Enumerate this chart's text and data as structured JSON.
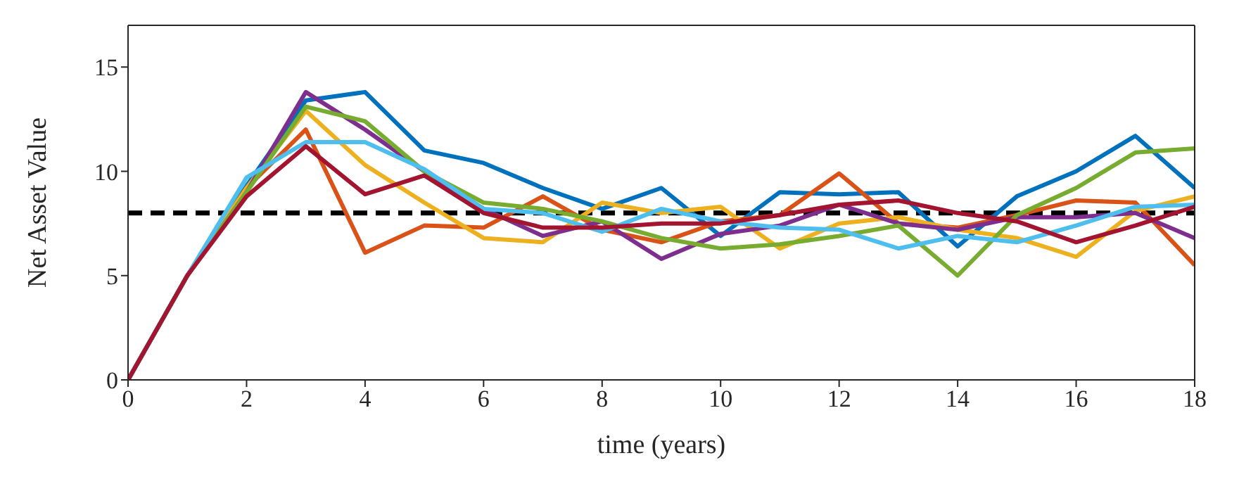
{
  "chart_data": {
    "type": "line",
    "xlabel": "time (years)",
    "ylabel": "Net Asset Value",
    "x": [
      0,
      1,
      2,
      3,
      4,
      5,
      6,
      7,
      8,
      9,
      10,
      11,
      12,
      13,
      14,
      15,
      16,
      17,
      18
    ],
    "xlim": [
      0,
      18
    ],
    "xticks": [
      0,
      2,
      4,
      6,
      8,
      10,
      12,
      14,
      16,
      18
    ],
    "ylim": [
      0,
      17
    ],
    "yticks": [
      0,
      5,
      10,
      15
    ],
    "legend": false,
    "marker": "none",
    "line_style": "solid",
    "series": [
      {
        "color": "#0072bd",
        "values": [
          0,
          5,
          9.3,
          13.4,
          13.8,
          11.0,
          10.4,
          9.2,
          8.2,
          9.2,
          6.9,
          9.0,
          8.9,
          9.0,
          6.4,
          8.8,
          10.0,
          11.7,
          9.2
        ]
      },
      {
        "color": "#d95319",
        "values": [
          0,
          5,
          9.2,
          12.0,
          6.1,
          7.4,
          7.3,
          8.8,
          7.2,
          6.6,
          7.6,
          7.9,
          9.9,
          7.5,
          7.3,
          7.9,
          8.6,
          8.5,
          5.5
        ]
      },
      {
        "color": "#edb120",
        "values": [
          0,
          5,
          9.2,
          12.9,
          10.3,
          8.5,
          6.8,
          6.6,
          8.5,
          8.0,
          8.3,
          6.3,
          7.5,
          7.8,
          7.2,
          6.8,
          5.9,
          8.1,
          8.8
        ]
      },
      {
        "color": "#7e2f8e",
        "values": [
          0,
          5,
          9.0,
          13.8,
          12.0,
          10.0,
          8.2,
          6.9,
          7.6,
          5.8,
          7.0,
          7.4,
          8.4,
          7.5,
          7.2,
          7.8,
          7.8,
          8.0,
          6.8
        ]
      },
      {
        "color": "#77ac30",
        "values": [
          0,
          5,
          9.0,
          13.1,
          12.4,
          10.0,
          8.5,
          8.2,
          7.6,
          6.8,
          6.3,
          6.5,
          6.9,
          7.4,
          5.0,
          7.9,
          9.2,
          10.9,
          11.1
        ]
      },
      {
        "color": "#4dbeee",
        "values": [
          0,
          5,
          9.7,
          11.4,
          11.4,
          10.1,
          8.2,
          8.0,
          7.1,
          8.2,
          7.6,
          7.3,
          7.2,
          6.3,
          6.9,
          6.6,
          7.4,
          8.3,
          8.4
        ]
      },
      {
        "color": "#a2142f",
        "values": [
          0,
          5,
          8.8,
          11.2,
          8.9,
          9.8,
          8.0,
          7.3,
          7.3,
          7.5,
          7.5,
          7.9,
          8.4,
          8.6,
          8.0,
          7.6,
          6.6,
          7.4,
          8.3
        ]
      }
    ],
    "ref_lines": [
      {
        "axis": "y",
        "value": 8,
        "color": "#000000",
        "line_style": "dashed"
      }
    ]
  }
}
